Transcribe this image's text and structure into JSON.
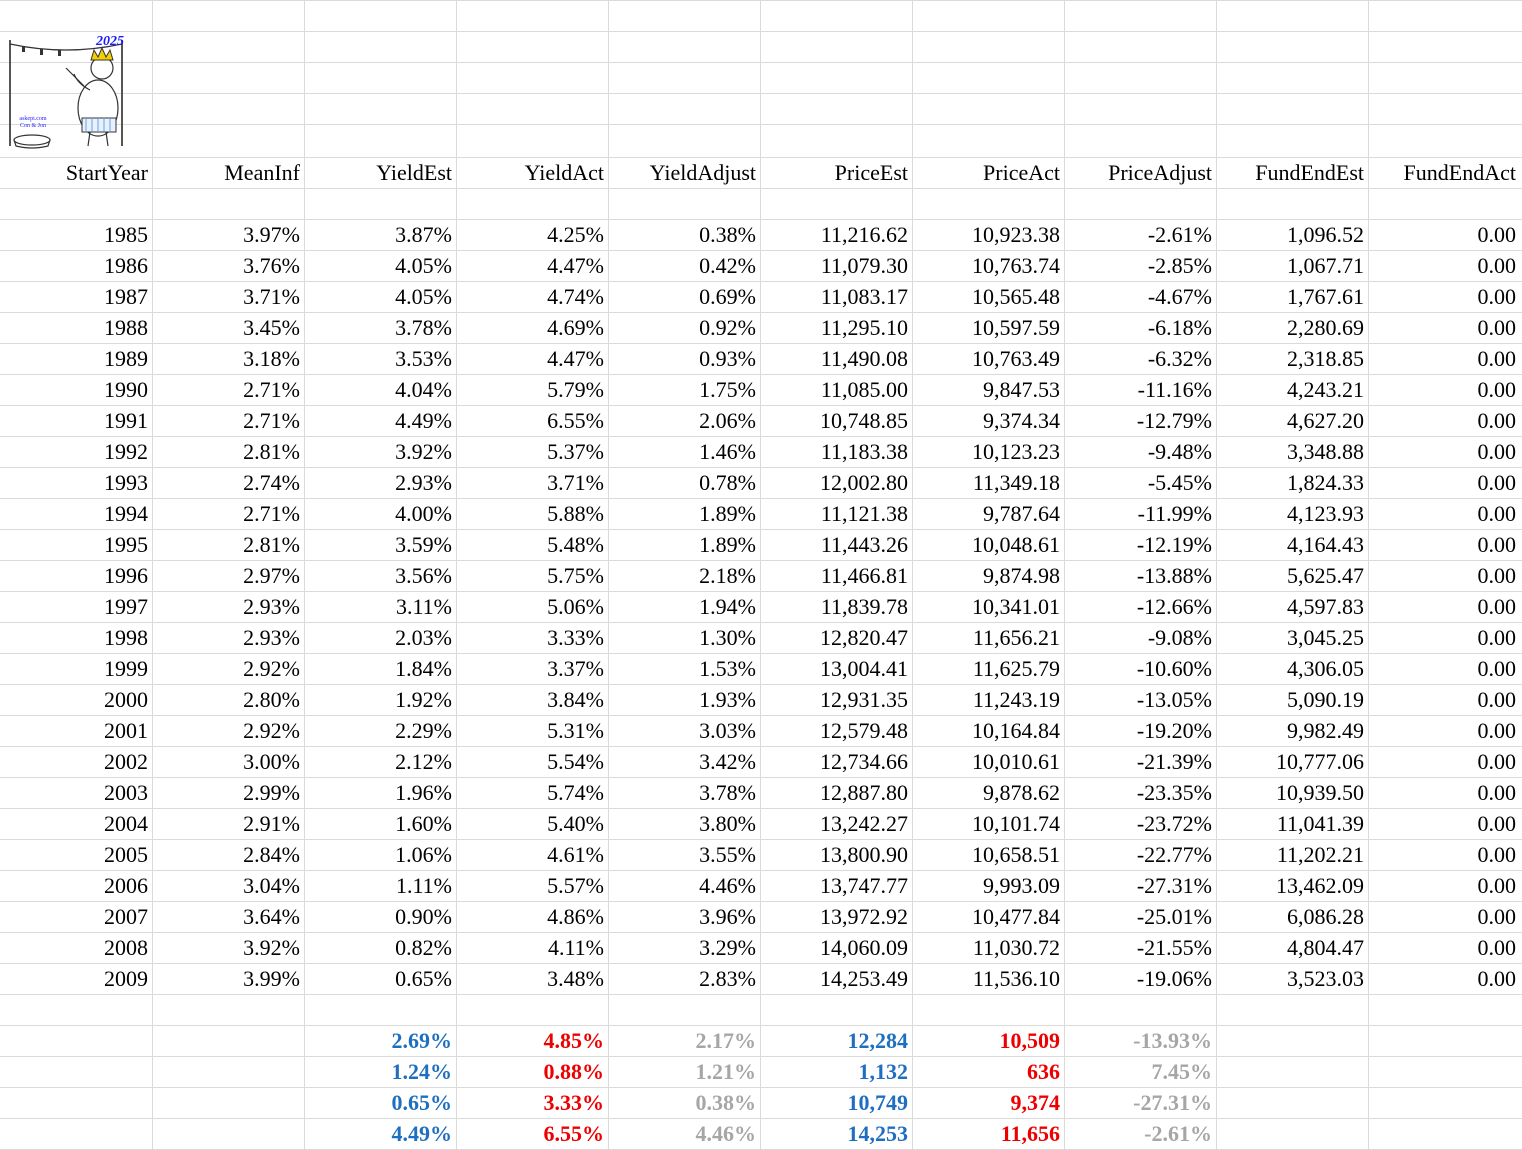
{
  "logo": {
    "year": "2025",
    "caption_line1": "askepi.com",
    "caption_line2": "Con & Jon",
    "icon": "clothesline-cartoon-icon"
  },
  "headers": [
    "StartYear",
    "MeanInf",
    "YieldEst",
    "YieldAct",
    "YieldAdjust",
    "PriceEst",
    "PriceAct",
    "PriceAdjust",
    "FundEndEst",
    "FundEndAct"
  ],
  "rows": [
    [
      "1985",
      "3.97%",
      "3.87%",
      "4.25%",
      "0.38%",
      "11,216.62",
      "10,923.38",
      "-2.61%",
      "1,096.52",
      "0.00"
    ],
    [
      "1986",
      "3.76%",
      "4.05%",
      "4.47%",
      "0.42%",
      "11,079.30",
      "10,763.74",
      "-2.85%",
      "1,067.71",
      "0.00"
    ],
    [
      "1987",
      "3.71%",
      "4.05%",
      "4.74%",
      "0.69%",
      "11,083.17",
      "10,565.48",
      "-4.67%",
      "1,767.61",
      "0.00"
    ],
    [
      "1988",
      "3.45%",
      "3.78%",
      "4.69%",
      "0.92%",
      "11,295.10",
      "10,597.59",
      "-6.18%",
      "2,280.69",
      "0.00"
    ],
    [
      "1989",
      "3.18%",
      "3.53%",
      "4.47%",
      "0.93%",
      "11,490.08",
      "10,763.49",
      "-6.32%",
      "2,318.85",
      "0.00"
    ],
    [
      "1990",
      "2.71%",
      "4.04%",
      "5.79%",
      "1.75%",
      "11,085.00",
      "9,847.53",
      "-11.16%",
      "4,243.21",
      "0.00"
    ],
    [
      "1991",
      "2.71%",
      "4.49%",
      "6.55%",
      "2.06%",
      "10,748.85",
      "9,374.34",
      "-12.79%",
      "4,627.20",
      "0.00"
    ],
    [
      "1992",
      "2.81%",
      "3.92%",
      "5.37%",
      "1.46%",
      "11,183.38",
      "10,123.23",
      "-9.48%",
      "3,348.88",
      "0.00"
    ],
    [
      "1993",
      "2.74%",
      "2.93%",
      "3.71%",
      "0.78%",
      "12,002.80",
      "11,349.18",
      "-5.45%",
      "1,824.33",
      "0.00"
    ],
    [
      "1994",
      "2.71%",
      "4.00%",
      "5.88%",
      "1.89%",
      "11,121.38",
      "9,787.64",
      "-11.99%",
      "4,123.93",
      "0.00"
    ],
    [
      "1995",
      "2.81%",
      "3.59%",
      "5.48%",
      "1.89%",
      "11,443.26",
      "10,048.61",
      "-12.19%",
      "4,164.43",
      "0.00"
    ],
    [
      "1996",
      "2.97%",
      "3.56%",
      "5.75%",
      "2.18%",
      "11,466.81",
      "9,874.98",
      "-13.88%",
      "5,625.47",
      "0.00"
    ],
    [
      "1997",
      "2.93%",
      "3.11%",
      "5.06%",
      "1.94%",
      "11,839.78",
      "10,341.01",
      "-12.66%",
      "4,597.83",
      "0.00"
    ],
    [
      "1998",
      "2.93%",
      "2.03%",
      "3.33%",
      "1.30%",
      "12,820.47",
      "11,656.21",
      "-9.08%",
      "3,045.25",
      "0.00"
    ],
    [
      "1999",
      "2.92%",
      "1.84%",
      "3.37%",
      "1.53%",
      "13,004.41",
      "11,625.79",
      "-10.60%",
      "4,306.05",
      "0.00"
    ],
    [
      "2000",
      "2.80%",
      "1.92%",
      "3.84%",
      "1.93%",
      "12,931.35",
      "11,243.19",
      "-13.05%",
      "5,090.19",
      "0.00"
    ],
    [
      "2001",
      "2.92%",
      "2.29%",
      "5.31%",
      "3.03%",
      "12,579.48",
      "10,164.84",
      "-19.20%",
      "9,982.49",
      "0.00"
    ],
    [
      "2002",
      "3.00%",
      "2.12%",
      "5.54%",
      "3.42%",
      "12,734.66",
      "10,010.61",
      "-21.39%",
      "10,777.06",
      "0.00"
    ],
    [
      "2003",
      "2.99%",
      "1.96%",
      "5.74%",
      "3.78%",
      "12,887.80",
      "9,878.62",
      "-23.35%",
      "10,939.50",
      "0.00"
    ],
    [
      "2004",
      "2.91%",
      "1.60%",
      "5.40%",
      "3.80%",
      "13,242.27",
      "10,101.74",
      "-23.72%",
      "11,041.39",
      "0.00"
    ],
    [
      "2005",
      "2.84%",
      "1.06%",
      "4.61%",
      "3.55%",
      "13,800.90",
      "10,658.51",
      "-22.77%",
      "11,202.21",
      "0.00"
    ],
    [
      "2006",
      "3.04%",
      "1.11%",
      "5.57%",
      "4.46%",
      "13,747.77",
      "9,993.09",
      "-27.31%",
      "13,462.09",
      "0.00"
    ],
    [
      "2007",
      "3.64%",
      "0.90%",
      "4.86%",
      "3.96%",
      "13,972.92",
      "10,477.84",
      "-25.01%",
      "6,086.28",
      "0.00"
    ],
    [
      "2008",
      "3.92%",
      "0.82%",
      "4.11%",
      "3.29%",
      "14,060.09",
      "11,030.72",
      "-21.55%",
      "4,804.47",
      "0.00"
    ],
    [
      "2009",
      "3.99%",
      "0.65%",
      "3.48%",
      "2.83%",
      "14,253.49",
      "11,536.10",
      "-19.06%",
      "3,523.03",
      "0.00"
    ]
  ],
  "summary": [
    [
      "2.69%",
      "4.85%",
      "2.17%",
      "12,284",
      "10,509",
      "-13.93%"
    ],
    [
      "1.24%",
      "0.88%",
      "1.21%",
      "1,132",
      "636",
      "7.45%"
    ],
    [
      "0.65%",
      "3.33%",
      "0.38%",
      "10,749",
      "9,374",
      "-27.31%"
    ],
    [
      "4.49%",
      "6.55%",
      "4.46%",
      "14,253",
      "11,656",
      "-2.61%"
    ]
  ],
  "summary_colors": [
    "blue",
    "red",
    "gray",
    "blue",
    "red",
    "gray"
  ]
}
